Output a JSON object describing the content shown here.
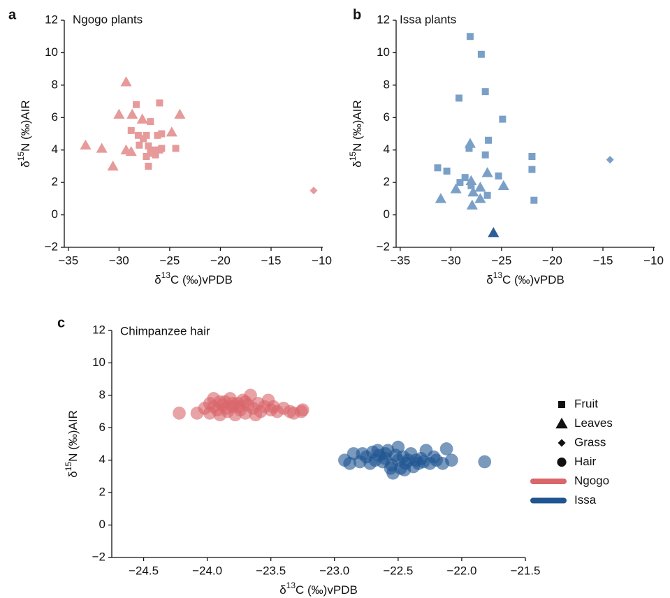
{
  "chart_data": [
    {
      "type": "scatter",
      "panel": "a",
      "title": "Ngogo plants",
      "xlabel": "δ13C (‰)vPDB",
      "ylabel": "δ15N (‰)AIR",
      "xlim": [
        -35.4,
        -9.9
      ],
      "ylim": [
        -2,
        12
      ],
      "xticks": [
        {
          "value": -35,
          "label": "−35"
        },
        {
          "value": -30,
          "label": "−30"
        },
        {
          "value": -25,
          "label": "−25"
        },
        {
          "value": -20,
          "label": "−20"
        },
        {
          "value": -15,
          "label": "−15"
        },
        {
          "value": -10,
          "label": "−10"
        }
      ],
      "yticks": [
        {
          "value": -2,
          "label": "−2"
        },
        0,
        2,
        4,
        6,
        8,
        10,
        12
      ],
      "series": [
        {
          "marker": "square",
          "color": "#e69a9a",
          "opacity": 1,
          "x": [
            -28.3,
            -26.0,
            -28.8,
            -26.9,
            -28.1,
            -27.3,
            -26.2,
            -25.8,
            -28.0,
            -27.1,
            -26.9,
            -26.5,
            -25.8,
            -24.4,
            -27.3,
            -26.7,
            -26.0,
            -27.1,
            -26.4,
            -27.6
          ],
          "y": [
            6.8,
            6.9,
            5.2,
            5.75,
            4.9,
            4.9,
            4.9,
            5.0,
            4.3,
            4.25,
            3.9,
            4.0,
            4.1,
            4.1,
            3.6,
            3.8,
            4.0,
            3.0,
            3.7,
            4.7
          ]
        },
        {
          "marker": "triangle",
          "color": "#e69a9a",
          "opacity": 1,
          "x": [
            -33.3,
            -31.7,
            -30.6,
            -30.0,
            -29.3,
            -28.7,
            -27.7,
            -29.3,
            -28.8,
            -24.8,
            -24.0
          ],
          "y": [
            4.3,
            4.1,
            3.0,
            6.2,
            8.2,
            6.2,
            5.9,
            4.0,
            3.9,
            5.1,
            6.2
          ]
        },
        {
          "marker": "diamond",
          "color": "#e69a9a",
          "opacity": 1,
          "x": [
            -10.8
          ],
          "y": [
            1.5
          ]
        }
      ]
    },
    {
      "type": "scatter",
      "panel": "b",
      "title": "Issa plants",
      "xlabel": "δ13C (‰)vPDB",
      "ylabel": "δ15N (‰)AIR",
      "xlim": [
        -35.4,
        -9.9
      ],
      "ylim": [
        -2,
        12
      ],
      "xticks": [
        {
          "value": -35,
          "label": "−35"
        },
        {
          "value": -30,
          "label": "−30"
        },
        {
          "value": -25,
          "label": "−25"
        },
        {
          "value": -20,
          "label": "−20"
        },
        {
          "value": -15,
          "label": "−15"
        },
        {
          "value": -10,
          "label": "−10"
        }
      ],
      "yticks": [
        {
          "value": -2,
          "label": "−2"
        },
        0,
        2,
        4,
        6,
        8,
        10,
        12
      ],
      "series": [
        {
          "marker": "square",
          "color": "#7ba0c8",
          "opacity": 1,
          "x": [
            -28.1,
            -27.0,
            -29.2,
            -26.6,
            -24.9,
            -26.3,
            -28.2,
            -26.6,
            -22.0,
            -22.0,
            -21.8,
            -31.3,
            -30.4,
            -29.1,
            -28.6,
            -28.0,
            -25.3,
            -26.4
          ],
          "y": [
            11.0,
            9.9,
            7.2,
            7.6,
            5.9,
            4.6,
            4.1,
            3.7,
            3.6,
            2.8,
            0.9,
            2.9,
            2.7,
            2.0,
            2.3,
            1.8,
            2.4,
            1.2
          ]
        },
        {
          "marker": "triangle",
          "color": "#7ba0c8",
          "opacity": 1,
          "x": [
            -28.1,
            -26.4,
            -31.0,
            -29.5,
            -28.0,
            -27.1,
            -27.8,
            -27.1,
            -24.8,
            -27.9
          ],
          "y": [
            4.4,
            2.6,
            1.0,
            1.6,
            2.1,
            1.7,
            1.4,
            1.0,
            1.8,
            0.6
          ]
        },
        {
          "marker": "triangle",
          "color": "#2b5f99",
          "opacity": 1,
          "x": [
            -25.8
          ],
          "y": [
            -1.1
          ]
        },
        {
          "marker": "diamond",
          "color": "#7ba0c8",
          "opacity": 1,
          "x": [
            -14.3
          ],
          "y": [
            3.4
          ]
        }
      ]
    },
    {
      "type": "scatter",
      "panel": "c",
      "title": "Chimpanzee hair",
      "xlabel": "δ13C (‰)vPDB",
      "ylabel": "δ15N (‰)AIR",
      "xlim": [
        -24.75,
        -21.5
      ],
      "ylim": [
        -2,
        12
      ],
      "xticks": [
        {
          "value": -24.5,
          "label": "−24.5"
        },
        {
          "value": -24,
          "label": "−24.0"
        },
        {
          "value": -23.5,
          "label": "−23.5"
        },
        {
          "value": -23,
          "label": "−23.0"
        },
        {
          "value": -22.5,
          "label": "−22.5"
        },
        {
          "value": -22,
          "label": "−22.0"
        },
        {
          "value": -21.5,
          "label": "−21.5"
        }
      ],
      "yticks": [
        {
          "value": -2,
          "label": "−2"
        },
        0,
        2,
        4,
        6,
        8,
        10,
        12
      ],
      "series": [
        {
          "marker": "circle",
          "color": "#d9666a",
          "opacity": 0.6,
          "x": [
            -24.22,
            -24.08,
            -24.02,
            -23.98,
            -23.95,
            -23.92,
            -23.9,
            -23.88,
            -23.86,
            -23.84,
            -23.82,
            -23.8,
            -23.78,
            -23.76,
            -23.74,
            -23.72,
            -23.7,
            -23.68,
            -23.66,
            -23.64,
            -23.62,
            -23.6,
            -23.58,
            -23.55,
            -23.52,
            -23.5,
            -23.48,
            -23.45,
            -23.4,
            -23.35,
            -23.32,
            -23.26,
            -23.25,
            -23.95,
            -23.9,
            -23.85,
            -23.8,
            -23.75,
            -23.7,
            -23.98
          ],
          "y": [
            6.9,
            6.9,
            7.2,
            7.5,
            7.8,
            7.1,
            6.8,
            7.4,
            7.6,
            7.0,
            7.8,
            7.3,
            6.8,
            7.5,
            7.1,
            7.7,
            6.9,
            7.4,
            8.0,
            7.2,
            6.8,
            7.5,
            7.0,
            7.3,
            7.7,
            7.1,
            7.3,
            7.0,
            7.2,
            7.0,
            6.9,
            7.0,
            7.1,
            7.3,
            7.6,
            7.2,
            7.5,
            7.3,
            7.6,
            6.9
          ]
        },
        {
          "marker": "circle",
          "color": "#1f5591",
          "opacity": 0.6,
          "x": [
            -22.92,
            -22.88,
            -22.85,
            -22.8,
            -22.75,
            -22.72,
            -22.7,
            -22.68,
            -22.65,
            -22.62,
            -22.6,
            -22.58,
            -22.55,
            -22.52,
            -22.5,
            -22.48,
            -22.46,
            -22.44,
            -22.42,
            -22.4,
            -22.38,
            -22.36,
            -22.34,
            -22.32,
            -22.3,
            -22.28,
            -22.25,
            -22.22,
            -22.2,
            -22.15,
            -22.12,
            -22.08,
            -21.82,
            -22.56,
            -22.6,
            -22.66,
            -22.78,
            -22.54,
            -22.5,
            -22.45
          ],
          "y": [
            4.0,
            3.8,
            4.4,
            3.9,
            4.2,
            3.8,
            4.5,
            4.0,
            4.3,
            3.9,
            4.1,
            4.6,
            3.7,
            4.3,
            4.0,
            3.5,
            4.2,
            3.8,
            4.0,
            4.4,
            3.6,
            4.0,
            3.8,
            4.1,
            3.9,
            4.6,
            3.8,
            4.2,
            4.0,
            3.8,
            4.7,
            4.0,
            3.9,
            3.5,
            4.4,
            4.6,
            4.4,
            3.2,
            4.8,
            3.4
          ]
        }
      ],
      "legend": {
        "markers": [
          {
            "label": "Fruit",
            "marker": "square"
          },
          {
            "label": "Leaves",
            "marker": "triangle"
          },
          {
            "label": "Grass",
            "marker": "diamond"
          },
          {
            "label": "Hair",
            "marker": "circle"
          }
        ],
        "groups": [
          {
            "label": "Ngogo",
            "color": "#d9666a"
          },
          {
            "label": "Issa",
            "color": "#1f5591"
          }
        ]
      }
    }
  ]
}
